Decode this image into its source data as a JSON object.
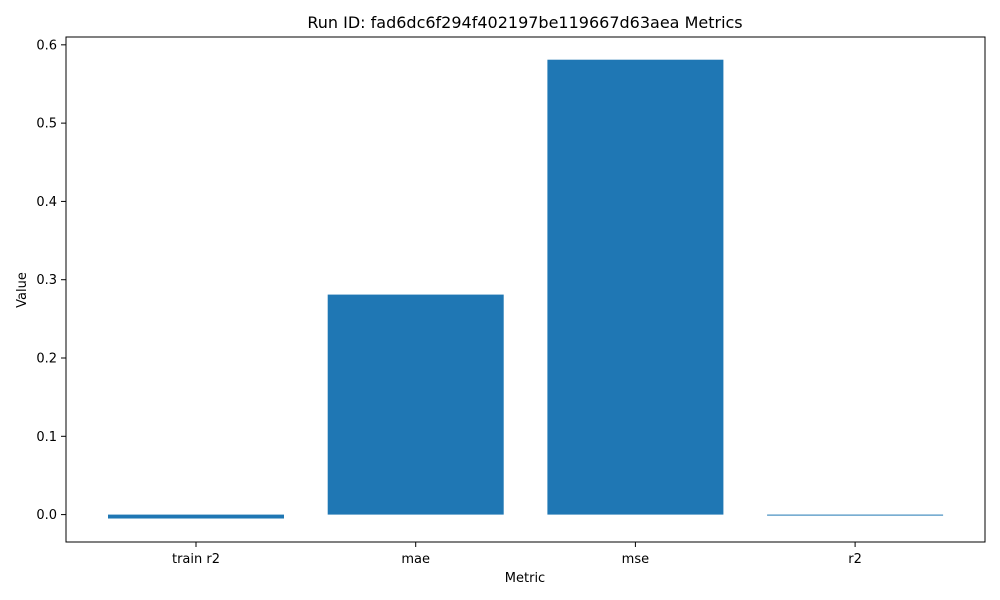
{
  "chart_data": {
    "type": "bar",
    "title": "Run ID: fad6dc6f294f402197be119667d63aea Metrics",
    "xlabel": "Metric",
    "ylabel": "Value",
    "categories": [
      "train r2",
      "mae",
      "mse",
      "r2"
    ],
    "values": [
      -0.005,
      0.281,
      0.581,
      -0.001
    ],
    "ylim": [
      -0.035,
      0.61
    ],
    "yticks": [
      0.0,
      0.1,
      0.2,
      0.3,
      0.4,
      0.5,
      0.6
    ],
    "ytick_labels": [
      "0.0",
      "0.1",
      "0.2",
      "0.3",
      "0.4",
      "0.5",
      "0.6"
    ],
    "grid": false,
    "legend": "none",
    "bar_color": "#1f77b4"
  }
}
